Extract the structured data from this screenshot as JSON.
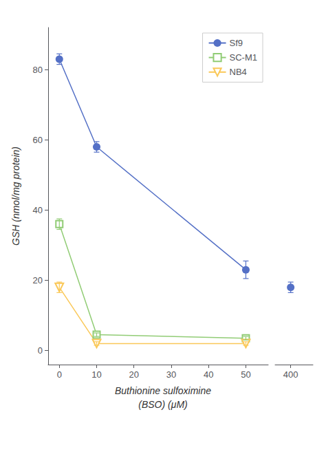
{
  "chart_data": [
    {
      "type": "line",
      "xlabel": "Buthionine sulfoximine\n(BSO) (μM)",
      "ylabel": "GSH (nmol/mg protein)",
      "xlim": [
        -3,
        56
      ],
      "xticks": [
        0,
        10,
        20,
        30,
        40,
        50
      ],
      "ylim": [
        -4,
        92
      ],
      "yticks": [
        0,
        20,
        40,
        60,
        80
      ],
      "grid": false,
      "legend": "upper right",
      "series": [
        {
          "name": "Sf9",
          "marker": "circle",
          "x": [
            0,
            10,
            50
          ],
          "values": [
            83,
            58,
            23
          ],
          "errors": [
            1.5,
            1.5,
            2.5
          ]
        },
        {
          "name": "SC-M1",
          "marker": "square",
          "x": [
            0,
            10,
            50
          ],
          "values": [
            36,
            4.5,
            3.5
          ],
          "errors": [
            1.5,
            0.5,
            0.5
          ]
        },
        {
          "name": "NB4",
          "marker": "triangle_down",
          "x": [
            0,
            10,
            50
          ],
          "values": [
            18,
            2,
            2
          ],
          "errors": [
            1.5,
            0.5,
            0.5
          ]
        }
      ]
    },
    {
      "type": "line",
      "xlim": [
        393,
        410
      ],
      "xticks": [
        400
      ],
      "ylim": [
        -4,
        92
      ],
      "yticks": [
        0,
        20,
        40,
        60,
        80
      ],
      "grid": false,
      "tick_labels": "x",
      "series": [
        {
          "name": "Sf9",
          "marker": "circle",
          "x": [
            400
          ],
          "values": [
            18
          ],
          "errors": [
            1.5
          ]
        }
      ]
    }
  ]
}
